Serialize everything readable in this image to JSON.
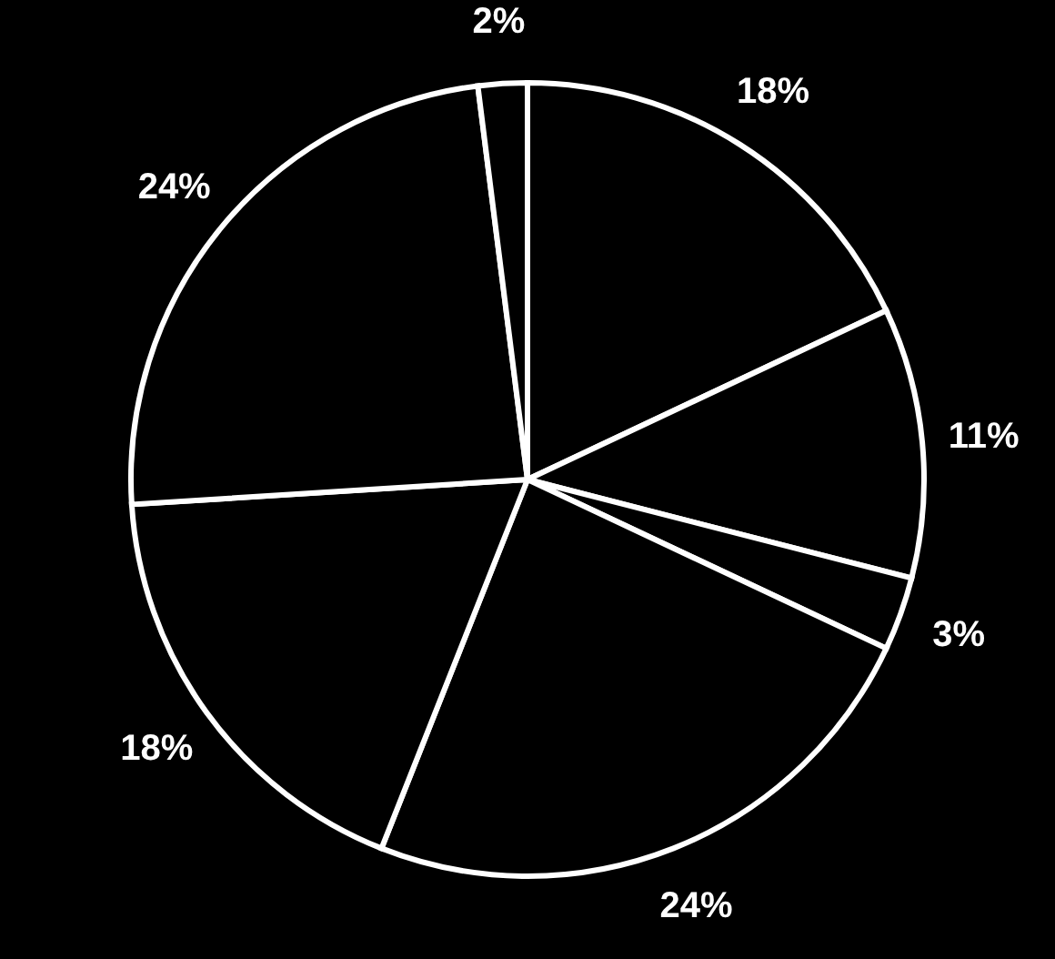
{
  "chart_data": {
    "type": "pie",
    "categories": [
      null,
      null,
      null,
      null,
      null,
      null,
      null
    ],
    "values": [
      18,
      11,
      3,
      24,
      18,
      24,
      2
    ],
    "colors": [
      "#000000",
      "#000000",
      "#000000",
      "#000000",
      "#000000",
      "#000000",
      "#000000"
    ],
    "value_labels": [
      "18%",
      "11%",
      "3%",
      "24%",
      "18%",
      "24%",
      "2%"
    ]
  }
}
